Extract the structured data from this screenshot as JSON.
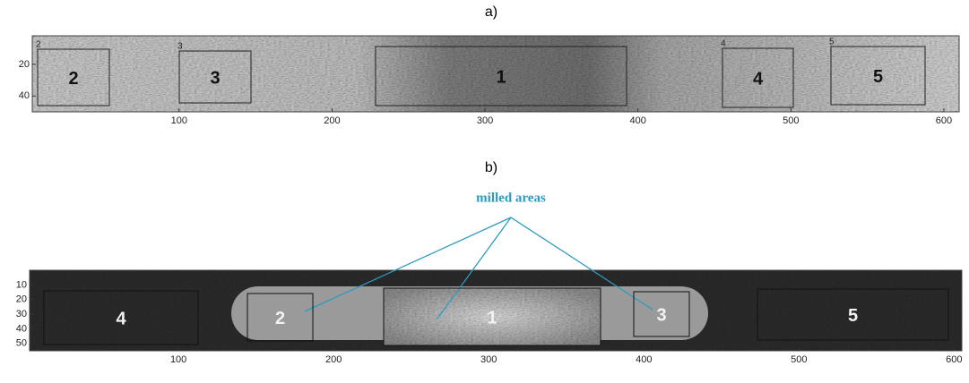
{
  "panels": [
    {
      "caption": "a)",
      "xlim": [
        4,
        610
      ],
      "ylim": [
        2,
        50
      ],
      "xticks": [
        100,
        200,
        300,
        400,
        500,
        600
      ],
      "yticks": [
        20,
        40
      ],
      "regions": [
        {
          "label": "2",
          "tag": "2"
        },
        {
          "label": "3",
          "tag": "3"
        },
        {
          "label": "1"
        },
        {
          "label": "4",
          "tag": "4"
        },
        {
          "label": "5",
          "tag": "5"
        }
      ]
    },
    {
      "caption": "b)",
      "xlim": [
        4,
        605
      ],
      "ylim": [
        0,
        55
      ],
      "xticks": [
        100,
        200,
        300,
        400,
        500,
        600
      ],
      "yticks": [
        10,
        20,
        30,
        40,
        50
      ],
      "regions": [
        {
          "label": "4"
        },
        {
          "label": "2"
        },
        {
          "label": "1"
        },
        {
          "label": "3"
        },
        {
          "label": "5"
        }
      ],
      "annotation": "milled areas"
    }
  ]
}
